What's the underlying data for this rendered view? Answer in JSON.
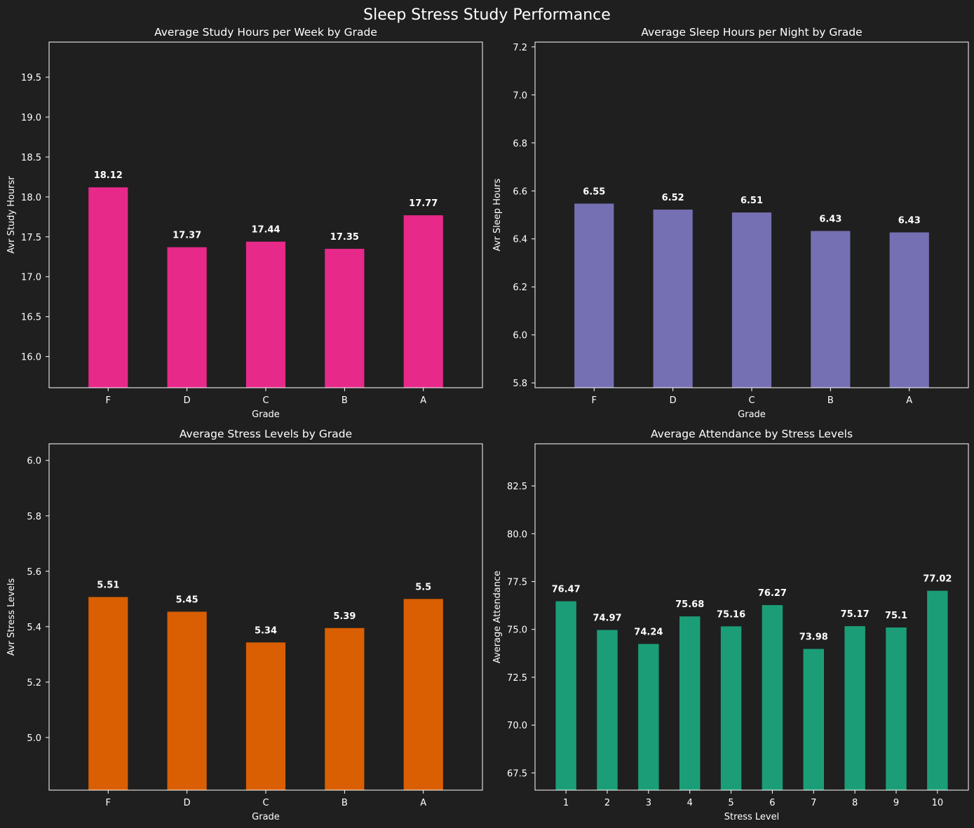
{
  "figure": {
    "suptitle": "Sleep Stress Study Performance",
    "background": "#1f1f1f",
    "text_color": "#ffffff"
  },
  "chart_data": [
    {
      "type": "bar",
      "title": "Average Study Hours per Week by Grade",
      "xlabel": "Grade",
      "ylabel": "Avr Study Hoursr",
      "categories": [
        "F",
        "D",
        "C",
        "B",
        "A"
      ],
      "values": [
        18.12,
        17.37,
        17.44,
        17.35,
        17.77
      ],
      "value_labels": [
        "18.12",
        "17.37",
        "17.44",
        "17.35",
        "17.77"
      ],
      "ylim": [
        15.61,
        19.94
      ],
      "yticks": [
        16.0,
        16.5,
        17.0,
        17.5,
        18.0,
        18.5,
        19.0,
        19.5
      ],
      "ytick_labels": [
        "16.0",
        "16.5",
        "17.0",
        "17.5",
        "18.0",
        "18.5",
        "19.0",
        "19.5"
      ],
      "color": "#e7298a",
      "grid": false
    },
    {
      "type": "bar",
      "title": "Average Sleep Hours per Night by Grade",
      "xlabel": "Grade",
      "ylabel": "Avr Sleep Hours",
      "categories": [
        "F",
        "D",
        "C",
        "B",
        "A"
      ],
      "values": [
        6.547,
        6.522,
        6.51,
        6.433,
        6.427
      ],
      "value_labels": [
        "6.55",
        "6.52",
        "6.51",
        "6.43",
        "6.43"
      ],
      "ylim": [
        5.78,
        7.22
      ],
      "yticks": [
        5.8,
        6.0,
        6.2,
        6.4,
        6.6,
        6.8,
        7.0,
        7.2
      ],
      "ytick_labels": [
        "5.8",
        "6.0",
        "6.2",
        "6.4",
        "6.6",
        "6.8",
        "7.0",
        "7.2"
      ],
      "color": "#7570b3",
      "grid": false
    },
    {
      "type": "bar",
      "title": "Average Stress Levels by Grade",
      "xlabel": "Grade",
      "ylabel": "Avr Stress Levels",
      "categories": [
        "F",
        "D",
        "C",
        "B",
        "A"
      ],
      "values": [
        5.507,
        5.454,
        5.343,
        5.395,
        5.5
      ],
      "value_labels": [
        "5.51",
        "5.45",
        "5.34",
        "5.39",
        "5.5"
      ],
      "ylim": [
        4.81,
        6.06
      ],
      "yticks": [
        5.0,
        5.2,
        5.4,
        5.6,
        5.8,
        6.0
      ],
      "ytick_labels": [
        "5.0",
        "5.2",
        "5.4",
        "5.6",
        "5.8",
        "6.0"
      ],
      "color": "#d95f02",
      "grid": false
    },
    {
      "type": "bar",
      "title": "Average Attendance by Stress Levels",
      "xlabel": "Stress Level",
      "ylabel": "Average Attendance",
      "categories": [
        "1",
        "2",
        "3",
        "4",
        "5",
        "6",
        "7",
        "8",
        "9",
        "10"
      ],
      "values": [
        76.47,
        74.97,
        74.24,
        75.68,
        75.16,
        76.27,
        73.98,
        75.17,
        75.1,
        77.02
      ],
      "value_labels": [
        "76.47",
        "74.97",
        "74.24",
        "75.68",
        "75.16",
        "76.27",
        "73.98",
        "75.17",
        "75.1",
        "77.02"
      ],
      "ylim": [
        66.6,
        84.7
      ],
      "yticks": [
        67.5,
        70.0,
        72.5,
        75.0,
        77.5,
        80.0,
        82.5
      ],
      "ytick_labels": [
        "67.5",
        "70.0",
        "72.5",
        "75.0",
        "77.5",
        "80.0",
        "82.5"
      ],
      "color": "#1b9e77",
      "grid": false
    }
  ]
}
